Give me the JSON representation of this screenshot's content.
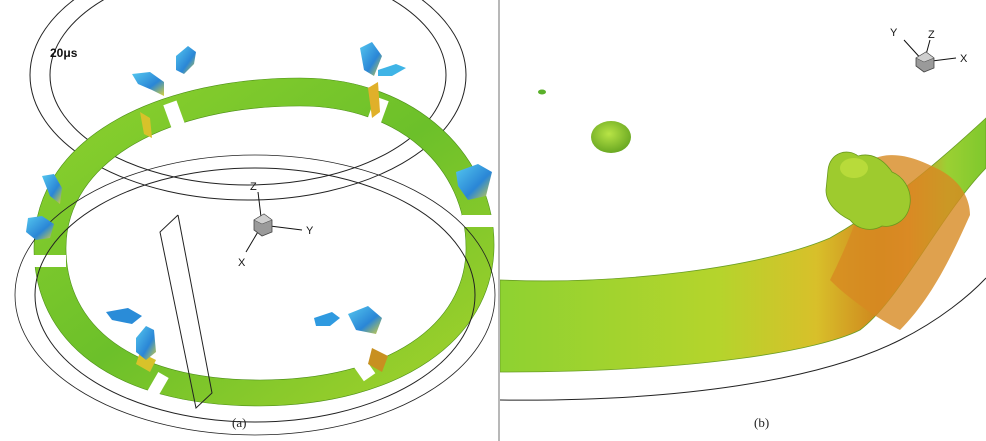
{
  "panel_a": {
    "time_label": "20μs",
    "caption": "(a)",
    "axes": {
      "z": "Z",
      "y": "Y",
      "x": "X"
    }
  },
  "panel_b": {
    "caption": "(b)",
    "axes": {
      "y": "Y",
      "z": "Z",
      "x": "X"
    }
  },
  "colors": {
    "ring_green": "#7cc82a",
    "ring_yellow": "#d8c22a",
    "ring_orange": "#d47a1c",
    "blob_blue": "#2f8fd8",
    "blob_cyan": "#4fc6e8",
    "outline": "#222222",
    "divider": "#b8b8b8"
  }
}
